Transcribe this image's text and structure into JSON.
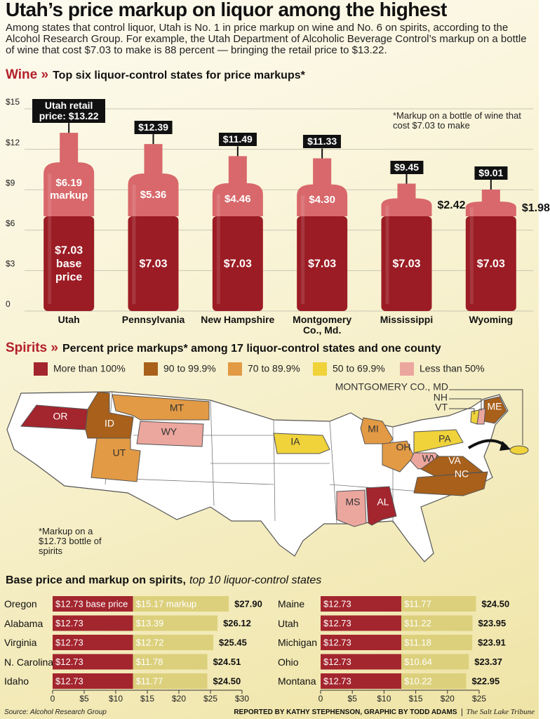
{
  "header": {
    "title": "Utah’s price markup on liquor among the highest",
    "intro": "Among states that control liquor, Utah is No. 1 in price markup on wine and No. 6 on spirits, according to the Alcohol Research Group. For example, the Utah Department of Alcoholic Beverage Control’s markup on a bottle of wine that cost $7.03 to make is 88 percent — bringing the retail price to $13.22."
  },
  "chart_data": [
    {
      "type": "bottle",
      "section": "Wine »",
      "title": "Top six liquor-control states for price markups*",
      "note": "*Markup on a bottle of wine that cost $7.03 to make",
      "categories": [
        "Utah",
        "Pennsylvania",
        "New Hampshire",
        "Montgomery Co., Md.",
        "Mississippi",
        "Wyoming"
      ],
      "series": [
        {
          "color": "#9b1c24",
          "values": [
            7.03,
            7.03,
            7.03,
            7.03,
            7.03,
            7.03
          ],
          "value_labels": [
            "$7.03 base price",
            "$7.03",
            "$7.03",
            "$7.03",
            "$7.03",
            "$7.03"
          ]
        },
        {
          "color": "#d8686b",
          "values": [
            6.19,
            5.36,
            4.46,
            4.3,
            2.42,
            1.98
          ],
          "value_labels": [
            "$6.19 markup",
            "$5.36",
            "$4.46",
            "$4.30",
            "$2.42",
            "$1.98"
          ]
        }
      ],
      "totals": {
        "values": [
          13.22,
          12.39,
          11.49,
          11.33,
          9.45,
          9.01
        ],
        "value_labels": [
          "Utah retail price: $13.22",
          "$12.39",
          "$11.49",
          "$11.33",
          "$9.45",
          "$9.01"
        ]
      },
      "ylim": [
        0,
        15
      ],
      "yticks": [
        0,
        {
          "value": 3,
          "label": "$3"
        },
        {
          "value": 6,
          "label": "$6"
        },
        {
          "value": 9,
          "label": "$9"
        },
        {
          "value": 12,
          "label": "$12"
        },
        {
          "value": 15,
          "label": "$15"
        }
      ],
      "grid": true
    },
    {
      "type": "bar",
      "orientation": "horizontal",
      "title": "Base price and markup on spirits,",
      "subtitle": "top 10 liquor-control states",
      "categories": [
        "Oregon",
        "Alabama",
        "Virginia",
        "N. Carolina",
        "Idaho"
      ],
      "series": [
        {
          "color": "#a3252e",
          "values": [
            12.73,
            12.73,
            12.73,
            12.73,
            12.73
          ],
          "value_labels": [
            "$12.73 base price",
            "$12.73",
            "$12.73",
            "$12.73",
            "$12.73"
          ]
        },
        {
          "color": "#dcd07c",
          "values": [
            15.17,
            13.39,
            12.72,
            11.78,
            11.77
          ],
          "value_labels": [
            "$15.17 markup",
            "$13.39",
            "$12.72",
            "$11.78",
            "$11.77"
          ]
        }
      ],
      "totals": {
        "values": [
          27.9,
          26.12,
          25.45,
          24.51,
          24.5
        ],
        "value_labels": [
          "$27.90",
          "$26.12",
          "$25.45",
          "$24.51",
          "$24.50"
        ]
      },
      "xlim": [
        0,
        30
      ],
      "xticks": [
        0,
        {
          "value": 5,
          "label": "$5"
        },
        {
          "value": 10,
          "label": "$10"
        },
        {
          "value": 15,
          "label": "$15"
        },
        {
          "value": 20,
          "label": "$20"
        },
        {
          "value": 25,
          "label": "$25"
        },
        {
          "value": 30,
          "label": "$30"
        }
      ]
    },
    {
      "type": "bar",
      "orientation": "horizontal",
      "categories": [
        "Maine",
        "Utah",
        "Michigan",
        "Ohio",
        "Montana"
      ],
      "series": [
        {
          "color": "#a3252e",
          "values": [
            12.73,
            12.73,
            12.73,
            12.73,
            12.73
          ],
          "value_labels": [
            "$12.73",
            "$12.73",
            "$12.73",
            "$12.73",
            "$12.73"
          ]
        },
        {
          "color": "#dcd07c",
          "values": [
            11.77,
            11.22,
            11.18,
            10.64,
            10.22
          ],
          "value_labels": [
            "$11.77",
            "$11.22",
            "$11.18",
            "$10.64",
            "$10.22"
          ]
        }
      ],
      "totals": {
        "values": [
          24.5,
          23.95,
          23.91,
          23.37,
          22.95
        ],
        "value_labels": [
          "$24.50",
          "$23.95",
          "$23.91",
          "$23.37",
          "$22.95"
        ]
      },
      "xlim": [
        0,
        25
      ],
      "xticks": [
        0,
        {
          "value": 5,
          "label": "$5"
        },
        {
          "value": 10,
          "label": "$10"
        },
        {
          "value": 15,
          "label": "$15"
        },
        {
          "value": 20,
          "label": "$20"
        },
        {
          "value": 25,
          "label": "$25"
        }
      ]
    }
  ],
  "map": {
    "section": "Spirits »",
    "title": "Percent price markups* among 17 liquor-control states and one county",
    "legend": [
      {
        "label": "More than 100%",
        "color": "#a3252e"
      },
      {
        "label": "90 to 99.9%",
        "color": "#a8601b"
      },
      {
        "label": "70 to 89.9%",
        "color": "#e29a44"
      },
      {
        "label": "50 to 69.9%",
        "color": "#f0d23a"
      },
      {
        "label": "Less than 50%",
        "color": "#eba69e"
      }
    ],
    "states": [
      {
        "label": "OR",
        "color": "#a3252e"
      },
      {
        "label": "ID",
        "color": "#a8601b"
      },
      {
        "label": "MT",
        "color": "#e29a44"
      },
      {
        "label": "WY",
        "color": "#eba69e"
      },
      {
        "label": "UT",
        "color": "#e29a44"
      },
      {
        "label": "IA",
        "color": "#f0d23a"
      },
      {
        "label": "MI",
        "color": "#e29a44"
      },
      {
        "label": "OH",
        "color": "#e29a44"
      },
      {
        "label": "PA",
        "color": "#f0d23a"
      },
      {
        "label": "WV",
        "color": "#eba69e"
      },
      {
        "label": "VA",
        "color": "#a8601b"
      },
      {
        "label": "NC",
        "color": "#a8601b"
      },
      {
        "label": "MS",
        "color": "#eba69e"
      },
      {
        "label": "AL",
        "color": "#a3252e"
      },
      {
        "label": "ME",
        "color": "#a8601b"
      }
    ],
    "callouts": [
      {
        "label": "MONTGOMERY CO., MD",
        "color": "#f0d23a"
      },
      {
        "label": "NH",
        "color": "#eba69e"
      },
      {
        "label": "VT",
        "color": "#f0d23a"
      }
    ],
    "note": "*Markup on a $12.73 bottle of spirits"
  },
  "footer": {
    "source": "Source: Alcohol Research Group",
    "credit": "REPORTED BY KATHY STEPHENSON, GRAPHIC BY TODD ADAMS",
    "publisher": "The Salt Lake Tribune"
  }
}
